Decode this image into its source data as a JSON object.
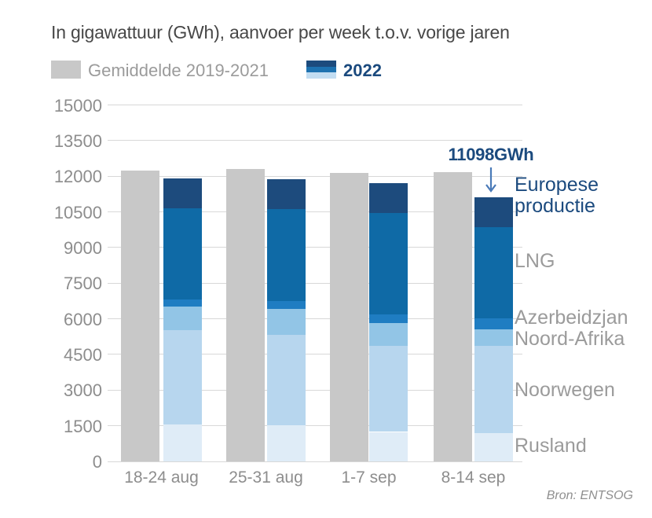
{
  "title": "In gigawattuur (GWh), aanvoer per week t.o.v. vorige jaren",
  "legend": {
    "average_label": "Gemiddelde 2019-2021",
    "year_label": "2022"
  },
  "annotation": {
    "text": "11098GWh",
    "points_to": "8-14 sep 2022 totaal"
  },
  "segment_labels": {
    "europese_productie": "Europese productie",
    "lng": "LNG",
    "azerbeidzjan": "Azerbeidzjan",
    "noord_afrika": "Noord-Afrika",
    "noorwegen": "Noorwegen",
    "rusland": "Rusland"
  },
  "source": "Bron: ENTSOG",
  "colors": {
    "average": "#c8c8c8",
    "rusland": "#dfecf7",
    "noorwegen": "#b7d6ee",
    "noord_afrika": "#92c5e6",
    "azerbeidzjan": "#1f7dc2",
    "lng": "#0f6aa6",
    "europese_productie": "#1d4b7d",
    "accent_text": "#1b4a7e",
    "label_gray": "#9b9b9b",
    "axis_gray": "#8d8d8d",
    "title_gray": "#474747",
    "gridline": "#d8d8d8",
    "arrow": "#4a7ab8",
    "legend_mid_blue": "#1e72b0",
    "legend_light_blue": "#c2ddf2"
  },
  "chart_data": {
    "type": "bar",
    "title": "In gigawattuur (GWh), aanvoer per week t.o.v. vorige jaren",
    "categories": [
      "18-24 aug",
      "25-31 aug",
      "1-7 sep",
      "8-14 sep"
    ],
    "ylim": [
      0,
      15000
    ],
    "yticks": [
      0,
      1500,
      3000,
      4500,
      6000,
      7500,
      9000,
      10500,
      12000,
      13500,
      15000
    ],
    "grid": true,
    "series": [
      {
        "name": "Gemiddelde 2019-2021",
        "role": "average",
        "color_key": "average",
        "values": [
          12230,
          12290,
          12150,
          12180
        ]
      },
      {
        "name": "Rusland",
        "role": "stack2022",
        "color_key": "rusland",
        "values": [
          1545,
          1510,
          1240,
          1190
        ]
      },
      {
        "name": "Noorwegen",
        "role": "stack2022",
        "color_key": "noorwegen",
        "values": [
          3970,
          3805,
          3615,
          3665
        ]
      },
      {
        "name": "Noord-Afrika",
        "role": "stack2022",
        "color_key": "noord_afrika",
        "values": [
          1015,
          1100,
          970,
          715
        ]
      },
      {
        "name": "Azerbeidzjan",
        "role": "stack2022",
        "color_key": "azerbeidzjan",
        "values": [
          285,
          330,
          355,
          440
        ]
      },
      {
        "name": "LNG",
        "role": "stack2022",
        "color_key": "lng",
        "values": [
          3850,
          3860,
          4275,
          3860
        ]
      },
      {
        "name": "Europese productie",
        "role": "stack2022",
        "color_key": "europese_productie",
        "values": [
          1255,
          1275,
          1265,
          1228
        ]
      }
    ],
    "totals_2022": [
      11920,
      11880,
      11720,
      11098
    ]
  }
}
